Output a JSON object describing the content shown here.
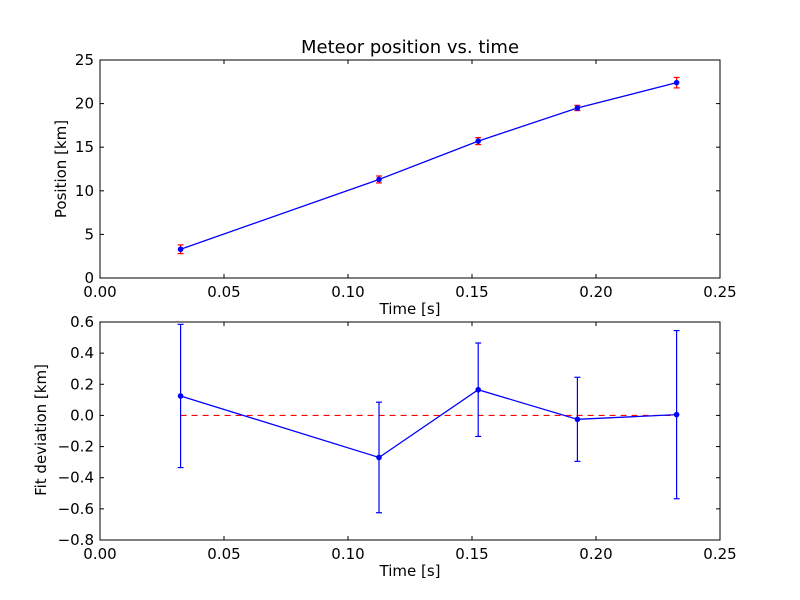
{
  "chart_data": [
    {
      "type": "line",
      "title": "Meteor position vs. time",
      "xlabel": "Time [s]",
      "ylabel": "Position [km]",
      "xlim": [
        0.0,
        0.25
      ],
      "ylim": [
        0,
        25
      ],
      "xticks": [
        0.0,
        0.05,
        0.1,
        0.15,
        0.2,
        0.25
      ],
      "xtick_labels": [
        "0.00",
        "0.05",
        "0.10",
        "0.15",
        "0.20",
        "0.25"
      ],
      "yticks": [
        0,
        5,
        10,
        15,
        20,
        25
      ],
      "ytick_labels": [
        "0",
        "5",
        "10",
        "15",
        "20",
        "25"
      ],
      "grid": false,
      "series": [
        {
          "x": [
            0.0325,
            0.1125,
            0.1525,
            0.1925,
            0.2325
          ],
          "y": [
            3.3,
            11.3,
            15.7,
            19.5,
            22.4
          ],
          "yerr": [
            0.5,
            0.4,
            0.4,
            0.3,
            0.6
          ],
          "line_color": "#0000ff",
          "errorbar_color": "#ff0000"
        }
      ]
    },
    {
      "type": "line",
      "title": "",
      "xlabel": "Time [s]",
      "ylabel": "Fit deviation [km]",
      "xlim": [
        0.0,
        0.25
      ],
      "ylim": [
        -0.8,
        0.6
      ],
      "xticks": [
        0.0,
        0.05,
        0.1,
        0.15,
        0.2,
        0.25
      ],
      "xtick_labels": [
        "0.00",
        "0.05",
        "0.10",
        "0.15",
        "0.20",
        "0.25"
      ],
      "yticks": [
        -0.8,
        -0.6,
        -0.4,
        -0.2,
        0.0,
        0.2,
        0.4,
        0.6
      ],
      "ytick_labels": [
        "−0.8",
        "−0.6",
        "−0.4",
        "−0.2",
        "0.0",
        "0.2",
        "0.4",
        "0.6"
      ],
      "grid": false,
      "series": [
        {
          "x": [
            0.0325,
            0.1125,
            0.1525,
            0.1925,
            0.2325
          ],
          "y": [
            0.125,
            -0.27,
            0.165,
            -0.025,
            0.005
          ],
          "yerr": [
            0.46,
            0.355,
            0.3,
            0.27,
            0.54
          ],
          "line_color": "#0000ff",
          "errorbar_color": "#0000ff"
        }
      ],
      "reference_line": {
        "y": 0.0,
        "style": "dashed",
        "color": "#ff0000"
      }
    }
  ]
}
